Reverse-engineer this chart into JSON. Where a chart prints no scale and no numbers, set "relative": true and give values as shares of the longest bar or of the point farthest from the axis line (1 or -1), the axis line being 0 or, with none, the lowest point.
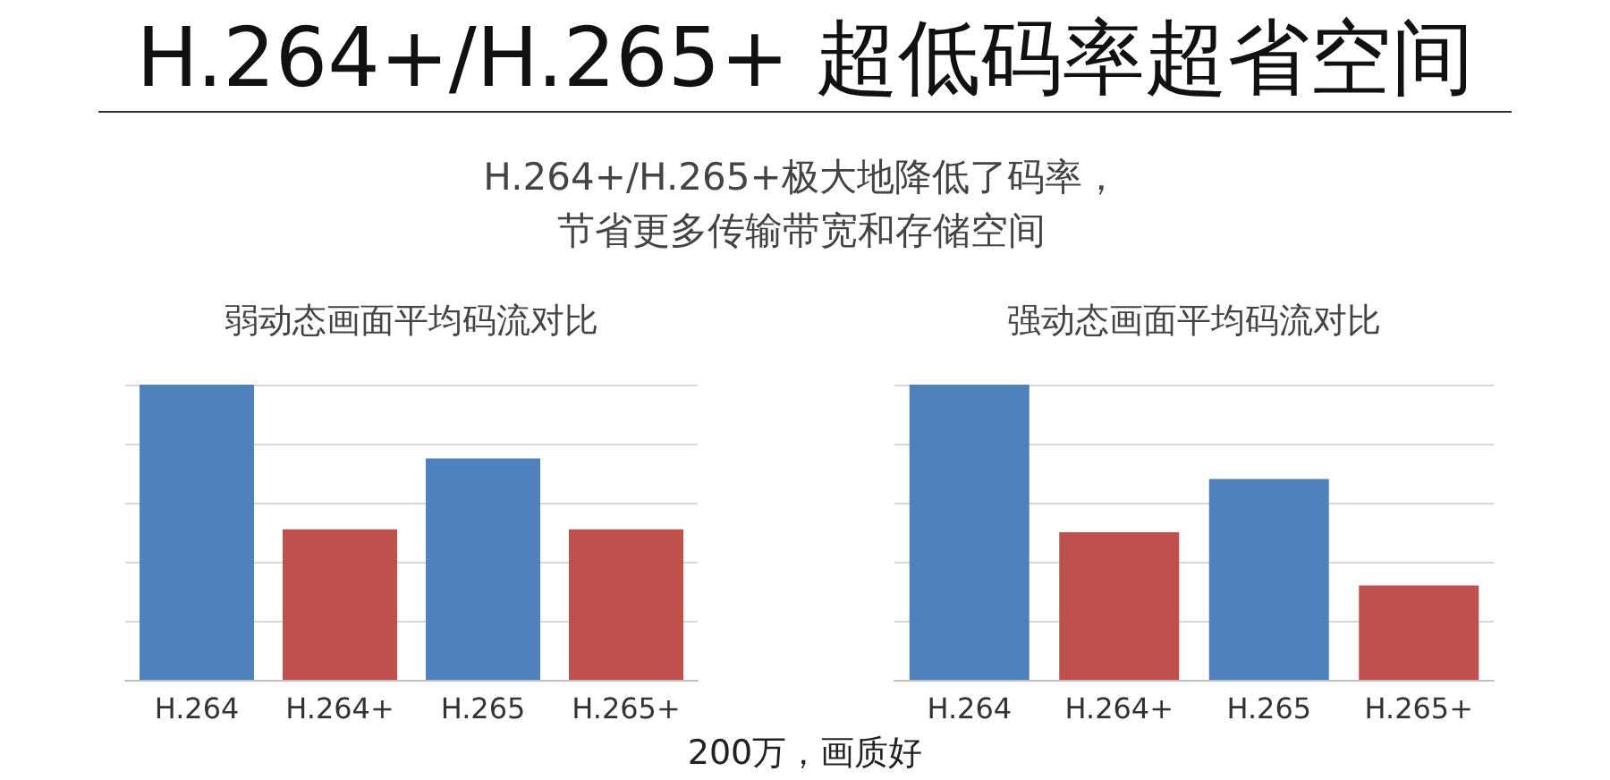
{
  "chart_data": [
    {
      "type": "other",
      "title": "H.264+/H.265+ 超低码率超省空间",
      "subtitle": "H.264+/H.265+极大地降低了码率，节省更多传输带宽和存储空间",
      "annotations": [
        "200万，画质好"
      ]
    },
    {
      "type": "bar",
      "title": "弱动态画面平均码流对比",
      "categories": [
        "H.264",
        "H.264+",
        "H.265",
        "H.265+"
      ],
      "values": [
        1,
        0.51,
        0.75,
        0.51
      ],
      "colors": [
        "#4f81bd",
        "#c0504d",
        "#4f81bd",
        "#c0504d"
      ],
      "relative": true,
      "grid": "y"
    },
    {
      "type": "bar",
      "title": "强动态画面平均码流对比",
      "categories": [
        "H.264",
        "H.264+",
        "H.265",
        "H.265+"
      ],
      "values": [
        1,
        0.5,
        0.68,
        0.32
      ],
      "colors": [
        "#4f81bd",
        "#c0504d",
        "#4f81bd",
        "#c0504d"
      ],
      "relative": true,
      "grid": "y"
    }
  ]
}
